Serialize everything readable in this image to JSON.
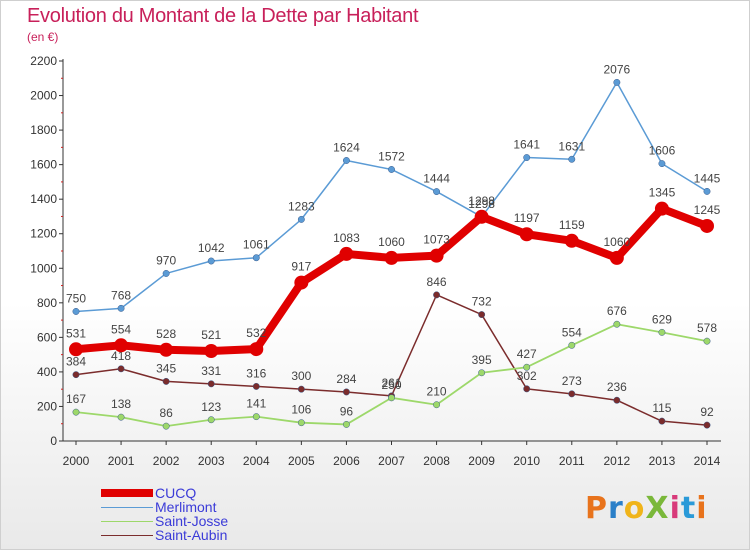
{
  "title": "Evolution du Montant de la Dette par Habitant",
  "subtitle": "(en €)",
  "logo": {
    "text": "ProXiti",
    "colors": [
      "#e8731c",
      "#2a7fc8",
      "#f0b41a",
      "#7ab83a",
      "#d83a7a",
      "#2a9ad8",
      "#e8731c"
    ]
  },
  "chart_data": {
    "type": "line",
    "title": "Evolution du Montant de la Dette par Habitant",
    "ylabel": "(en €)",
    "xlabel": "",
    "ylim": [
      0,
      2200
    ],
    "yticks": [
      0,
      200,
      400,
      600,
      800,
      1000,
      1200,
      1400,
      1600,
      1800,
      2000,
      2200
    ],
    "grid": false,
    "legend": "bottom-left",
    "categories": [
      "2000",
      "2001",
      "2002",
      "2003",
      "2004",
      "2005",
      "2006",
      "2007",
      "2008",
      "2009",
      "2010",
      "2011",
      "2012",
      "2013",
      "2014"
    ],
    "series": [
      {
        "name": "CUCQ",
        "color": "#e00000",
        "values": [
          531,
          554,
          528,
          521,
          532,
          917,
          1083,
          1060,
          1073,
          1298,
          1197,
          1159,
          1060,
          1345,
          1245
        ]
      },
      {
        "name": "Merlimont",
        "color": "#5b9bd5",
        "values": [
          750,
          768,
          970,
          1042,
          1061,
          1283,
          1624,
          1572,
          1444,
          1298,
          1641,
          1631,
          2076,
          1606,
          1445
        ]
      },
      {
        "name": "Saint-Josse",
        "color": "#9dd86a",
        "values": [
          167,
          138,
          86,
          123,
          141,
          106,
          96,
          250,
          210,
          395,
          427,
          554,
          676,
          629,
          578
        ]
      },
      {
        "name": "Saint-Aubin",
        "color": "#7b2c2c",
        "values": [
          384,
          418,
          345,
          331,
          316,
          300,
          284,
          261,
          846,
          732,
          302,
          273,
          236,
          115,
          92
        ]
      }
    ]
  }
}
